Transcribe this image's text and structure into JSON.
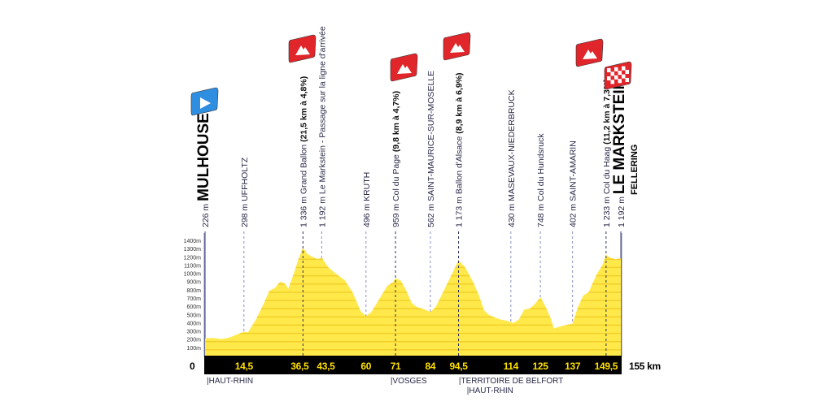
{
  "chart_data": {
    "type": "area",
    "xlabel": "",
    "ylabel": "",
    "x_unit": "km",
    "xlim": [
      0,
      155
    ],
    "ylim": [
      0,
      1400
    ],
    "y_ticks": [
      "100m",
      "200m",
      "300m",
      "400m",
      "500m",
      "600m",
      "700m",
      "800m",
      "900m",
      "1000m",
      "1100m",
      "1200m",
      "1300m",
      "1400m"
    ],
    "x_start_label": "0",
    "x_end_label": "155 km",
    "fill_color": "#ffe94a",
    "band_color": "#000000",
    "km_label_color": "#ffe000",
    "profile": [
      [
        0,
        220
      ],
      [
        3,
        225
      ],
      [
        6,
        212
      ],
      [
        9,
        228
      ],
      [
        12,
        268
      ],
      [
        14.5,
        300
      ],
      [
        16,
        292
      ],
      [
        19,
        450
      ],
      [
        22,
        650
      ],
      [
        24,
        800
      ],
      [
        26,
        830
      ],
      [
        28,
        910
      ],
      [
        30,
        880
      ],
      [
        31,
        820
      ],
      [
        33,
        1000
      ],
      [
        35,
        1200
      ],
      [
        36.5,
        1320
      ],
      [
        38,
        1250
      ],
      [
        40,
        1210
      ],
      [
        42,
        1180
      ],
      [
        43.5,
        1200
      ],
      [
        46,
        1080
      ],
      [
        49,
        1000
      ],
      [
        52,
        930
      ],
      [
        55,
        780
      ],
      [
        58,
        550
      ],
      [
        60,
        490
      ],
      [
        62,
        540
      ],
      [
        65,
        700
      ],
      [
        68,
        860
      ],
      [
        70,
        900
      ],
      [
        71,
        950
      ],
      [
        73,
        920
      ],
      [
        75,
        800
      ],
      [
        77,
        650
      ],
      [
        79,
        600
      ],
      [
        82,
        570
      ],
      [
        84,
        540
      ],
      [
        86,
        600
      ],
      [
        89,
        800
      ],
      [
        92,
        1000
      ],
      [
        94.5,
        1170
      ],
      [
        97,
        1080
      ],
      [
        100,
        900
      ],
      [
        102,
        750
      ],
      [
        104,
        560
      ],
      [
        106,
        500
      ],
      [
        110,
        450
      ],
      [
        113,
        430
      ],
      [
        115,
        405
      ],
      [
        117,
        450
      ],
      [
        119,
        570
      ],
      [
        121,
        580
      ],
      [
        123,
        640
      ],
      [
        125,
        720
      ],
      [
        127,
        600
      ],
      [
        129,
        450
      ],
      [
        130,
        340
      ],
      [
        133,
        370
      ],
      [
        136,
        390
      ],
      [
        137,
        400
      ],
      [
        139,
        600
      ],
      [
        141,
        740
      ],
      [
        143,
        780
      ],
      [
        146,
        1000
      ],
      [
        148,
        1100
      ],
      [
        149.5,
        1233
      ],
      [
        151,
        1200
      ],
      [
        153,
        1180
      ],
      [
        155,
        1192
      ]
    ],
    "km_markers": [
      "14,5",
      "36,5",
      "43,5",
      "60",
      "71",
      "84",
      "94,5",
      "114",
      "125",
      "137",
      "149,5"
    ],
    "waypoints": [
      {
        "km": 0,
        "alt": "226 m",
        "name": "MULHOUSE",
        "sub": "",
        "detail": "",
        "type": "start"
      },
      {
        "km": 14.5,
        "alt": "298 m",
        "name": "UFFHOLTZ",
        "detail": "",
        "type": "town"
      },
      {
        "km": 36.5,
        "alt": "1 336 m",
        "name": "Grand Ballon",
        "detail": "(21,5 km à 4,8%)",
        "type": "climb"
      },
      {
        "km": 43.5,
        "alt": "1 192 m",
        "name": "Le Markstein - Passage sur la ligne d'arrivée",
        "detail": "",
        "type": "town"
      },
      {
        "km": 60,
        "alt": "496 m",
        "name": "KRUTH",
        "detail": "",
        "type": "town"
      },
      {
        "km": 71,
        "alt": "959 m",
        "name": "Col du Page",
        "detail": "(9,8 km à 4,7%)",
        "type": "climb"
      },
      {
        "km": 84,
        "alt": "562 m",
        "name": "SAINT-MAURICE-SUR-MOSELLE",
        "detail": "",
        "type": "town"
      },
      {
        "km": 94.5,
        "alt": "1 173 m",
        "name": "Ballon d'Alsace",
        "detail": "(8,9 km à 6,9%)",
        "type": "climb"
      },
      {
        "km": 114,
        "alt": "430 m",
        "name": "MASEVAUX-NIEDERBRUCK",
        "detail": "",
        "type": "town"
      },
      {
        "km": 125,
        "alt": "748 m",
        "name": "Col du Hundsruck",
        "detail": "",
        "type": "town"
      },
      {
        "km": 137,
        "alt": "402 m",
        "name": "SAINT-AMARIN",
        "detail": "",
        "type": "town"
      },
      {
        "km": 149.5,
        "alt": "1 233 m",
        "name": "Col du Haag",
        "detail": "(11,2 km à 7,3%)",
        "type": "climb"
      },
      {
        "km": 155,
        "alt": "1 192 m",
        "name": "LE MARKSTEIN",
        "sub": "FELLERING",
        "detail": "",
        "type": "finish"
      }
    ],
    "departments": [
      {
        "km": 0,
        "label": "|HAUT-RHIN",
        "row": 0
      },
      {
        "km": 68.5,
        "label": "|VOSGES",
        "row": 0
      },
      {
        "km": 94,
        "label": "|TERRITOIRE DE BELFORT",
        "row": 0
      },
      {
        "km": 97,
        "label": "|HAUT-RHIN",
        "row": 1
      }
    ],
    "flags": [
      {
        "km": 0,
        "kind": "start",
        "color": "#2f8ee0"
      },
      {
        "km": 36.5,
        "kind": "mountain",
        "color": "#e0262b"
      },
      {
        "km": 71,
        "kind": "mountain",
        "color": "#e0262b"
      },
      {
        "km": 94.5,
        "kind": "mountain",
        "color": "#e0262b"
      },
      {
        "km": 149.5,
        "kind": "mountain",
        "color": "#e0262b"
      },
      {
        "km": 155,
        "kind": "finish",
        "color": "#e0262b"
      }
    ]
  }
}
